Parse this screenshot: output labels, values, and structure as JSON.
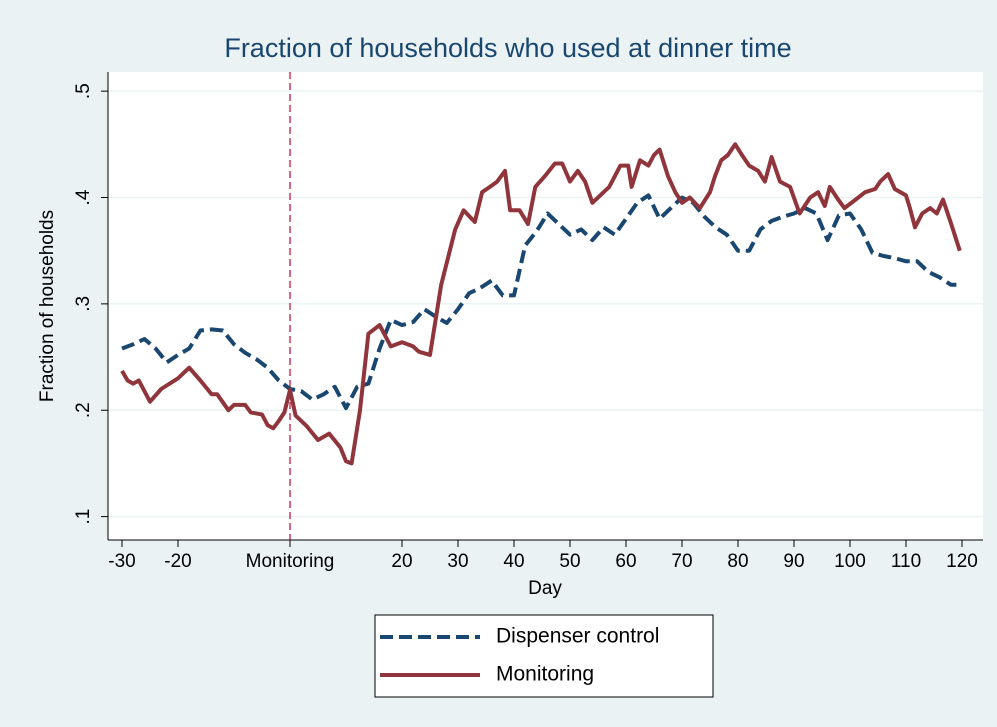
{
  "chart_data": {
    "type": "line",
    "title": "Fraction of households who used at dinner time",
    "x_label": "Day",
    "y_label": "Fraction of households",
    "xlim": [
      -32.5,
      123.75
    ],
    "ylim": [
      0.078,
      0.518
    ],
    "xticks": [
      -30,
      -20,
      {
        "value": 0,
        "label": "Monitoring"
      },
      20,
      30,
      40,
      50,
      60,
      70,
      80,
      90,
      100,
      110,
      120
    ],
    "yticks": [
      {
        "value": 0.1,
        "label": ".1"
      },
      {
        "value": 0.2,
        "label": ".2"
      },
      {
        "value": 0.3,
        "label": ".3"
      },
      {
        "value": 0.4,
        "label": ".4"
      },
      {
        "value": 0.5,
        "label": ".5"
      }
    ],
    "grid": true,
    "vline": 0,
    "vline_color": "#c10534",
    "legend": "bottom",
    "series": [
      {
        "name": "Dispenser control",
        "color": "#1a476f",
        "dash": true,
        "x": [
          -30,
          -28,
          -26,
          -24,
          -22,
          -20,
          -18,
          -16,
          -14,
          -12,
          -10,
          -8,
          -6,
          -4,
          -2,
          0,
          2,
          4,
          6,
          8,
          10,
          12,
          14,
          16,
          18,
          20,
          22,
          24,
          26,
          28,
          30,
          32,
          34,
          36,
          38,
          40,
          42,
          44,
          46,
          48,
          50,
          52,
          54,
          56,
          58,
          60,
          62,
          64,
          66,
          68,
          70,
          72,
          74,
          76,
          78,
          80,
          82,
          84,
          86,
          88,
          90,
          92,
          94,
          96,
          98,
          100,
          102,
          104,
          106,
          108,
          110,
          112,
          114,
          116,
          118,
          119
        ],
        "values": [
          0.258,
          0.262,
          0.267,
          0.258,
          0.245,
          0.252,
          0.258,
          0.275,
          0.276,
          0.275,
          0.262,
          0.254,
          0.248,
          0.24,
          0.228,
          0.22,
          0.218,
          0.21,
          0.215,
          0.222,
          0.202,
          0.222,
          0.225,
          0.258,
          0.285,
          0.28,
          0.283,
          0.295,
          0.288,
          0.282,
          0.295,
          0.31,
          0.315,
          0.322,
          0.308,
          0.308,
          0.355,
          0.368,
          0.385,
          0.375,
          0.365,
          0.37,
          0.36,
          0.372,
          0.365,
          0.38,
          0.395,
          0.402,
          0.38,
          0.39,
          0.4,
          0.395,
          0.382,
          0.372,
          0.365,
          0.35,
          0.35,
          0.37,
          0.378,
          0.382,
          0.385,
          0.39,
          0.385,
          0.36,
          0.383,
          0.385,
          0.37,
          0.348,
          0.345,
          0.343,
          0.34,
          0.34,
          0.33,
          0.325,
          0.318,
          0.318
        ]
      },
      {
        "name": "Monitoring",
        "color": "#90353b",
        "dash": false,
        "x": [
          -30,
          -29,
          -28,
          -27,
          -25,
          -23,
          -20,
          -18,
          -16,
          -14,
          -13,
          -11,
          -10,
          -8,
          -7,
          -5,
          -4,
          -3,
          -2,
          -1,
          0,
          1,
          3,
          5,
          7,
          9,
          10,
          11,
          12.5,
          14,
          16,
          18,
          20,
          22,
          23,
          25,
          27,
          29.5,
          31,
          33,
          34.3,
          35.7,
          37,
          38.4,
          39.3,
          41,
          42.5,
          43.8,
          45.5,
          47.3,
          48.6,
          50,
          51.4,
          52.7,
          54,
          55.4,
          57,
          59,
          60.4,
          61,
          62.5,
          64,
          65,
          66,
          67.5,
          68.8,
          70,
          71.4,
          73.2,
          75,
          75.9,
          77,
          78.2,
          79.5,
          80.7,
          82,
          83.6,
          84.8,
          86,
          87.5,
          89.3,
          91,
          92.9,
          94.3,
          95.5,
          96.4,
          97.9,
          99,
          101,
          102.7,
          104.5,
          105.4,
          106.8,
          108,
          110,
          110.7,
          111.6,
          112.9,
          114.3,
          115.5,
          116.6,
          117.9,
          119.6
        ],
        "values": [
          0.237,
          0.228,
          0.225,
          0.228,
          0.208,
          0.22,
          0.23,
          0.24,
          0.228,
          0.215,
          0.215,
          0.2,
          0.205,
          0.205,
          0.198,
          0.196,
          0.186,
          0.183,
          0.19,
          0.198,
          0.219,
          0.195,
          0.185,
          0.172,
          0.178,
          0.165,
          0.152,
          0.15,
          0.2,
          0.272,
          0.28,
          0.26,
          0.264,
          0.26,
          0.255,
          0.252,
          0.318,
          0.37,
          0.388,
          0.377,
          0.405,
          0.41,
          0.415,
          0.425,
          0.388,
          0.388,
          0.375,
          0.41,
          0.42,
          0.432,
          0.432,
          0.415,
          0.425,
          0.415,
          0.395,
          0.402,
          0.41,
          0.43,
          0.43,
          0.41,
          0.435,
          0.43,
          0.44,
          0.445,
          0.42,
          0.405,
          0.395,
          0.4,
          0.39,
          0.405,
          0.42,
          0.435,
          0.44,
          0.45,
          0.44,
          0.43,
          0.425,
          0.415,
          0.438,
          0.415,
          0.41,
          0.385,
          0.4,
          0.405,
          0.392,
          0.41,
          0.398,
          0.39,
          0.398,
          0.405,
          0.408,
          0.415,
          0.422,
          0.408,
          0.402,
          0.39,
          0.372,
          0.385,
          0.39,
          0.385,
          0.398,
          0.378,
          0.35
        ]
      }
    ]
  }
}
